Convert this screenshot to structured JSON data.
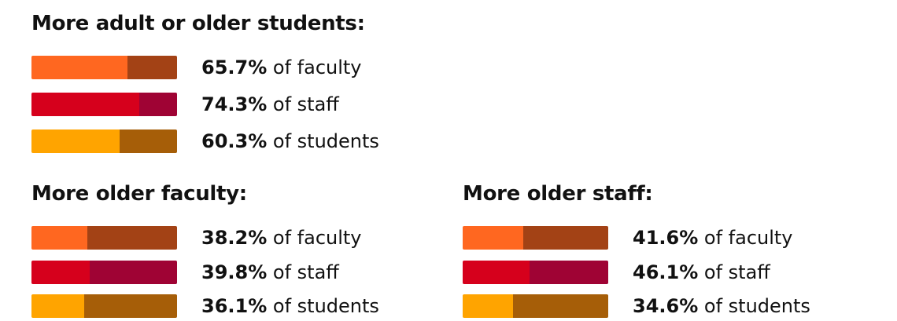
{
  "colors": {
    "faculty": {
      "fill": "#FF6720",
      "rest": "#A34215"
    },
    "staff": {
      "fill": "#D6001C",
      "rest": "#9F0334"
    },
    "students": {
      "fill": "#FFA400",
      "rest": "#A65E08"
    }
  },
  "groups": [
    {
      "title": "More adult or older students:",
      "rows": [
        {
          "pct": "65.7%",
          "suffix": "of faculty",
          "value": 65.7,
          "type": "faculty"
        },
        {
          "pct": "74.3%",
          "suffix": "of staff",
          "value": 74.3,
          "type": "staff"
        },
        {
          "pct": "60.3%",
          "suffix": "of students",
          "value": 60.3,
          "type": "students"
        }
      ]
    },
    {
      "title": "More older faculty:",
      "rows": [
        {
          "pct": "38.2%",
          "suffix": "of faculty",
          "value": 38.2,
          "type": "faculty"
        },
        {
          "pct": "39.8%",
          "suffix": "of staff",
          "value": 39.8,
          "type": "staff"
        },
        {
          "pct": "36.1%",
          "suffix": "of students",
          "value": 36.1,
          "type": "students"
        }
      ]
    },
    {
      "title": "More older staff:",
      "rows": [
        {
          "pct": "41.6%",
          "suffix": "of faculty",
          "value": 41.6,
          "type": "faculty"
        },
        {
          "pct": "46.1%",
          "suffix": "of staff",
          "value": 46.1,
          "type": "staff"
        },
        {
          "pct": "34.6%",
          "suffix": "of students",
          "value": 34.6,
          "type": "students"
        }
      ]
    }
  ],
  "chart_data": [
    {
      "type": "bar",
      "title": "More adult or older students:",
      "categories": [
        "faculty",
        "staff",
        "students"
      ],
      "values": [
        65.7,
        74.3,
        60.3
      ],
      "xlabel": "",
      "ylabel": "",
      "ylim": [
        0,
        100
      ],
      "orientation": "horizontal"
    },
    {
      "type": "bar",
      "title": "More older faculty:",
      "categories": [
        "faculty",
        "staff",
        "students"
      ],
      "values": [
        38.2,
        39.8,
        36.1
      ],
      "xlabel": "",
      "ylabel": "",
      "ylim": [
        0,
        100
      ],
      "orientation": "horizontal"
    },
    {
      "type": "bar",
      "title": "More older staff:",
      "categories": [
        "faculty",
        "staff",
        "students"
      ],
      "values": [
        41.6,
        46.1,
        34.6
      ],
      "xlabel": "",
      "ylabel": "",
      "ylim": [
        0,
        100
      ],
      "orientation": "horizontal"
    }
  ]
}
